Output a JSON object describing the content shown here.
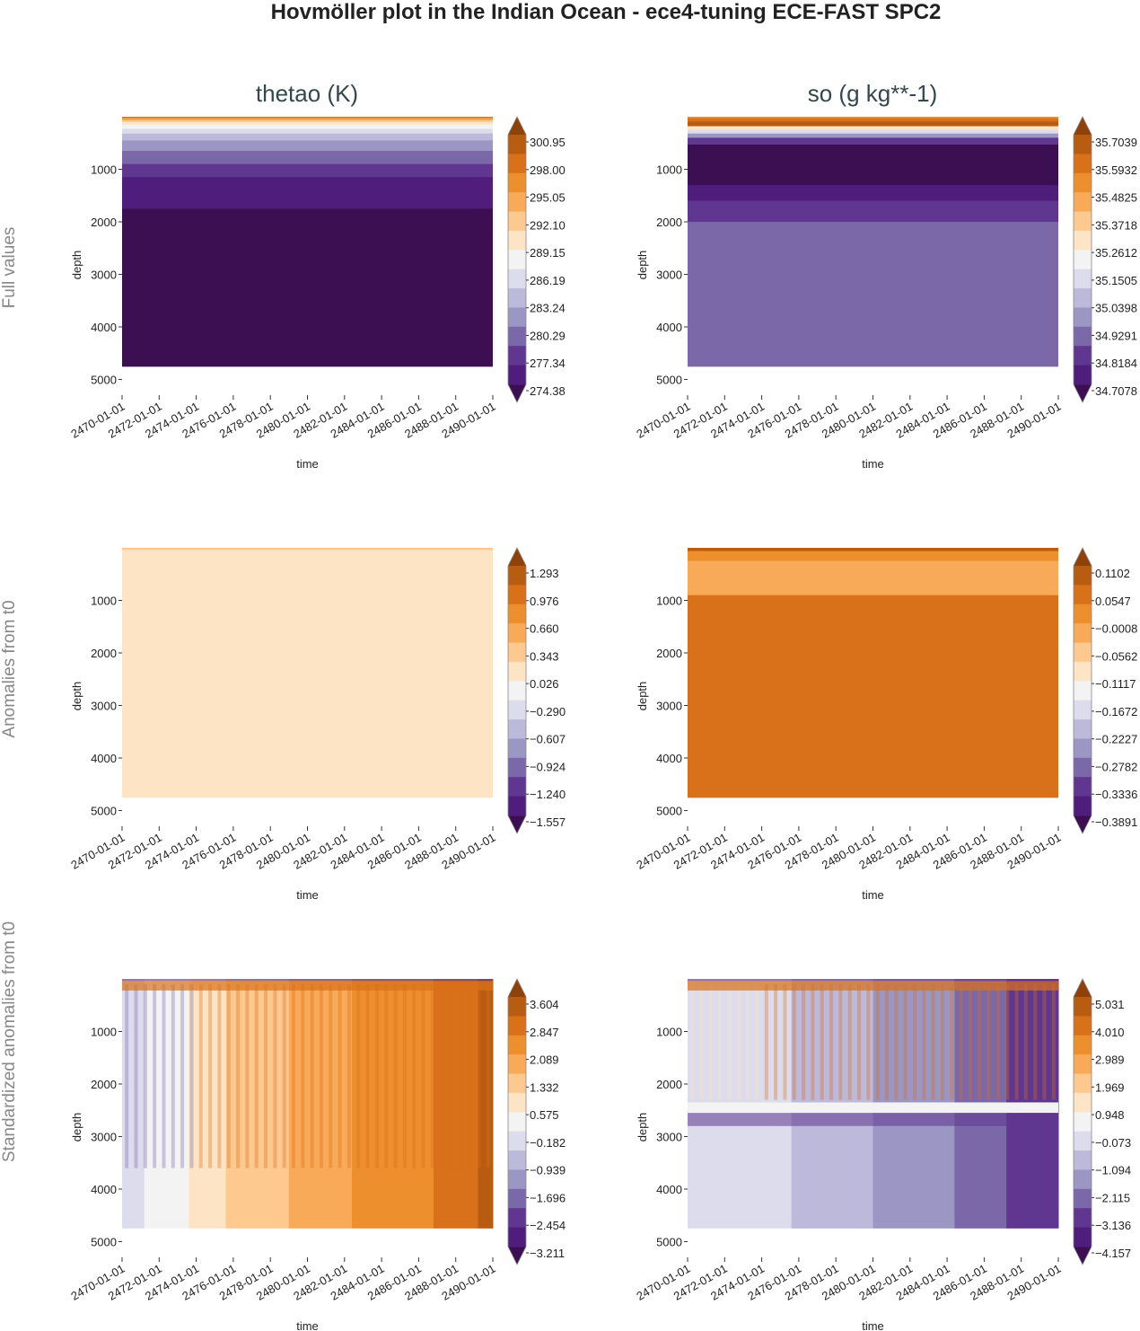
{
  "figure": {
    "title": "Hovmöller plot in the Indian Ocean - ece4-tuning ECE-FAST SPC2",
    "column_titles": [
      "thetao (K)",
      "so (g kg**-1)"
    ],
    "row_titles": [
      "Full values",
      "Anomalies from t0",
      "Standardized anomalies from t0"
    ]
  },
  "colors": {
    "palette": [
      "#3b0f52",
      "#4f1d7c",
      "#5f3690",
      "#7a68a8",
      "#9c96c4",
      "#bdb9da",
      "#dcdcec",
      "#f3f3f3",
      "#fde4c4",
      "#fdc98f",
      "#f9aa58",
      "#ec8f2c",
      "#d9711a",
      "#b85c12",
      "#8e4209"
    ]
  },
  "chart_data": [
    {
      "type": "heatmap",
      "name": "thetao-full",
      "row": "Full values",
      "column": "thetao (K)",
      "xlabel": "time",
      "ylabel": "depth",
      "x_ticks": [
        "2470-01-01",
        "2472-01-01",
        "2474-01-01",
        "2476-01-01",
        "2478-01-01",
        "2480-01-01",
        "2482-01-01",
        "2484-01-01",
        "2486-01-01",
        "2488-01-01",
        "2490-01-01"
      ],
      "y_ticks": [
        1000,
        2000,
        3000,
        4000,
        5000
      ],
      "ylim": [
        5300,
        0
      ],
      "data_depth_max": 4750,
      "colorbar_levels": [
        "274.38",
        "277.34",
        "280.29",
        "283.24",
        "286.19",
        "289.15",
        "292.10",
        "295.05",
        "298.00",
        "300.95"
      ],
      "bands": [
        {
          "depth": [
            0,
            15
          ],
          "level": 12
        },
        {
          "depth": [
            15,
            40
          ],
          "level": 11
        },
        {
          "depth": [
            40,
            70
          ],
          "level": 10
        },
        {
          "depth": [
            70,
            100
          ],
          "level": 9
        },
        {
          "depth": [
            100,
            150
          ],
          "level": 8
        },
        {
          "depth": [
            150,
            230
          ],
          "level": 7
        },
        {
          "depth": [
            230,
            320
          ],
          "level": 6
        },
        {
          "depth": [
            320,
            450
          ],
          "level": 5
        },
        {
          "depth": [
            450,
            650
          ],
          "level": 4
        },
        {
          "depth": [
            650,
            900
          ],
          "level": 3
        },
        {
          "depth": [
            900,
            1150
          ],
          "level": 2
        },
        {
          "depth": [
            1150,
            1750
          ],
          "level": 1
        },
        {
          "depth": [
            1750,
            4750
          ],
          "level": 0
        }
      ]
    },
    {
      "type": "heatmap",
      "name": "so-full",
      "row": "Full values",
      "column": "so (g kg**-1)",
      "xlabel": "time",
      "ylabel": "depth",
      "x_ticks": [
        "2470-01-01",
        "2472-01-01",
        "2474-01-01",
        "2476-01-01",
        "2478-01-01",
        "2480-01-01",
        "2482-01-01",
        "2484-01-01",
        "2486-01-01",
        "2488-01-01",
        "2490-01-01"
      ],
      "y_ticks": [
        1000,
        2000,
        3000,
        4000,
        5000
      ],
      "ylim": [
        5300,
        0
      ],
      "data_depth_max": 4750,
      "colorbar_levels": [
        "34.7078",
        "34.8184",
        "34.9291",
        "35.0398",
        "35.1505",
        "35.2612",
        "35.3718",
        "35.4825",
        "35.5932",
        "35.7039"
      ],
      "bands": [
        {
          "depth": [
            0,
            30
          ],
          "level": 11
        },
        {
          "depth": [
            30,
            90
          ],
          "level": 12
        },
        {
          "depth": [
            90,
            180
          ],
          "level": 13
        },
        {
          "depth": [
            180,
            250
          ],
          "level": 8
        },
        {
          "depth": [
            250,
            320
          ],
          "level": 6
        },
        {
          "depth": [
            320,
            400
          ],
          "level": 4
        },
        {
          "depth": [
            400,
            530
          ],
          "level": 2
        },
        {
          "depth": [
            530,
            1300
          ],
          "level": 0
        },
        {
          "depth": [
            1300,
            1600
          ],
          "level": 1
        },
        {
          "depth": [
            1600,
            2000
          ],
          "level": 2
        },
        {
          "depth": [
            2000,
            4750
          ],
          "level": 3
        }
      ]
    },
    {
      "type": "heatmap",
      "name": "thetao-anom",
      "row": "Anomalies from t0",
      "column": "thetao (K)",
      "xlabel": "time",
      "ylabel": "depth",
      "x_ticks": [
        "2470-01-01",
        "2472-01-01",
        "2474-01-01",
        "2476-01-01",
        "2478-01-01",
        "2480-01-01",
        "2482-01-01",
        "2484-01-01",
        "2486-01-01",
        "2488-01-01",
        "2490-01-01"
      ],
      "y_ticks": [
        1000,
        2000,
        3000,
        4000,
        5000
      ],
      "ylim": [
        5300,
        0
      ],
      "data_depth_max": 4750,
      "colorbar_levels": [
        "-1.557",
        "-1.240",
        "-0.924",
        "-0.607",
        "-0.290",
        "0.026",
        "0.343",
        "0.660",
        "0.976",
        "1.293"
      ],
      "bands": [
        {
          "depth": [
            0,
            40
          ],
          "level": 9
        },
        {
          "depth": [
            40,
            200
          ],
          "level": 8
        },
        {
          "depth": [
            200,
            4750
          ],
          "level": 8
        }
      ]
    },
    {
      "type": "heatmap",
      "name": "so-anom",
      "row": "Anomalies from t0",
      "column": "so (g kg**-1)",
      "xlabel": "time",
      "ylabel": "depth",
      "x_ticks": [
        "2470-01-01",
        "2472-01-01",
        "2474-01-01",
        "2476-01-01",
        "2478-01-01",
        "2480-01-01",
        "2482-01-01",
        "2484-01-01",
        "2486-01-01",
        "2488-01-01",
        "2490-01-01"
      ],
      "y_ticks": [
        1000,
        2000,
        3000,
        4000,
        5000
      ],
      "ylim": [
        5300,
        0
      ],
      "data_depth_max": 4750,
      "colorbar_levels": [
        "-0.3891",
        "-0.3336",
        "-0.2782",
        "-0.2227",
        "-0.1672",
        "-0.1117",
        "-0.0562",
        "-0.0008",
        "0.0547",
        "0.1102"
      ],
      "bands": [
        {
          "depth": [
            0,
            60
          ],
          "level": 13
        },
        {
          "depth": [
            60,
            250
          ],
          "level": 11
        },
        {
          "depth": [
            250,
            900
          ],
          "level": 10
        },
        {
          "depth": [
            900,
            4750
          ],
          "level": 12
        }
      ]
    },
    {
      "type": "heatmap",
      "name": "thetao-stdanom",
      "row": "Standardized anomalies from t0",
      "column": "thetao (K)",
      "xlabel": "time",
      "ylabel": "depth",
      "x_ticks": [
        "2470-01-01",
        "2472-01-01",
        "2474-01-01",
        "2476-01-01",
        "2478-01-01",
        "2480-01-01",
        "2482-01-01",
        "2484-01-01",
        "2486-01-01",
        "2488-01-01",
        "2490-01-01"
      ],
      "y_ticks": [
        1000,
        2000,
        3000,
        4000,
        5000
      ],
      "ylim": [
        5300,
        0
      ],
      "data_depth_max": 4750,
      "colorbar_levels": [
        "-3.211",
        "-2.454",
        "-1.696",
        "-0.939",
        "-0.182",
        "0.575",
        "1.332",
        "2.089",
        "2.847",
        "3.604"
      ],
      "time_segments": [
        {
          "time": [
            0,
            0.06
          ],
          "level": 6
        },
        {
          "time": [
            0.06,
            0.18
          ],
          "level": 7
        },
        {
          "time": [
            0.18,
            0.28
          ],
          "level": 8
        },
        {
          "time": [
            0.28,
            0.45
          ],
          "level": 9
        },
        {
          "time": [
            0.45,
            0.62
          ],
          "level": 10
        },
        {
          "time": [
            0.62,
            0.84
          ],
          "level": 11
        },
        {
          "time": [
            0.84,
            0.96
          ],
          "level": 12
        },
        {
          "time": [
            0.96,
            1.0
          ],
          "level": 13
        }
      ]
    },
    {
      "type": "heatmap",
      "name": "so-stdanom",
      "row": "Standardized anomalies from t0",
      "column": "so (g kg**-1)",
      "xlabel": "time",
      "ylabel": "depth",
      "x_ticks": [
        "2470-01-01",
        "2472-01-01",
        "2474-01-01",
        "2476-01-01",
        "2478-01-01",
        "2480-01-01",
        "2482-01-01",
        "2484-01-01",
        "2486-01-01",
        "2488-01-01",
        "2490-01-01"
      ],
      "y_ticks": [
        1000,
        2000,
        3000,
        4000,
        5000
      ],
      "ylim": [
        5300,
        0
      ],
      "data_depth_max": 4750,
      "colorbar_levels": [
        "-4.157",
        "-3.136",
        "-2.115",
        "-1.094",
        "-0.073",
        "0.948",
        "1.969",
        "2.989",
        "4.010",
        "5.031"
      ],
      "time_segments": [
        {
          "time": [
            0,
            0.28
          ],
          "level": 6
        },
        {
          "time": [
            0.28,
            0.5
          ],
          "level": 5
        },
        {
          "time": [
            0.5,
            0.72
          ],
          "level": 4
        },
        {
          "time": [
            0.72,
            0.86
          ],
          "level": 3
        },
        {
          "time": [
            0.86,
            1.0
          ],
          "level": 2
        }
      ]
    }
  ]
}
